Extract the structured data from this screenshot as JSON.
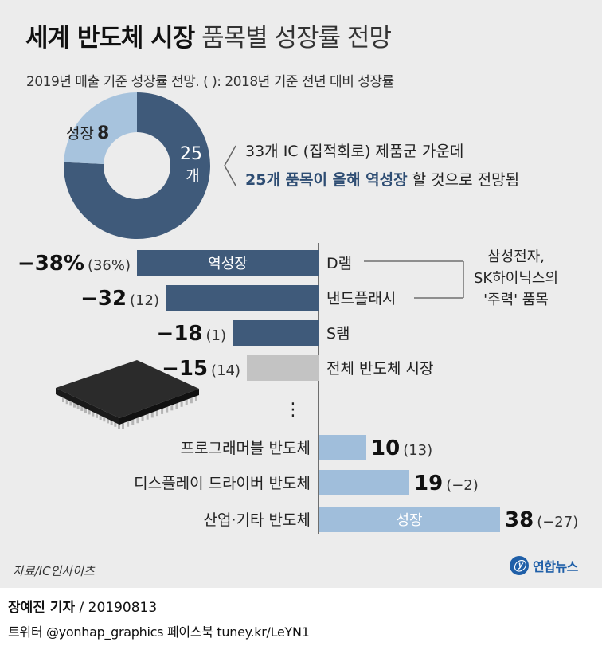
{
  "header": {
    "title_bold": "세계 반도체 시장",
    "title_light": "품목별 성장률 전망",
    "subtitle": "2019년 매출 기준 성장률 전망. ( ): 2018년 기준 전년 대비 성장률"
  },
  "donut": {
    "growth_label": "성장",
    "growth_count": "8",
    "decline_count": "25",
    "decline_unit": "개",
    "note_line1": "33개 IC (집적회로) 제품군 가운데",
    "note_bold": "25개 품목이 올해 역성장",
    "note_rest": " 할 것으로 전망됨",
    "colors": {
      "decline": "#3f5a7a",
      "growth": "#a7c3dd"
    }
  },
  "chart_data": {
    "type": "bar",
    "orientation": "horizontal",
    "categories": [
      "D램",
      "낸드플래시",
      "S램",
      "전체 반도체 시장",
      "프로그래머블 반도체",
      "디스플레이 드라이버 반도체",
      "산업·기타 반도체"
    ],
    "values": [
      -38,
      -32,
      -18,
      -15,
      10,
      19,
      38
    ],
    "value_labels": [
      "−38%",
      "−32",
      "−18",
      "−15",
      "10",
      "19",
      "38"
    ],
    "prev_labels": [
      "(36%)",
      "(12)",
      "(1)",
      "(14)",
      "(13)",
      "(−2)",
      "(−27)"
    ],
    "bar_texts": [
      "역성장",
      "",
      "",
      "",
      "",
      "",
      "성장"
    ],
    "ellipsis": "⋮",
    "colors": {
      "negative": "#3f5a7a",
      "total": "#c3c3c3",
      "positive": "#a0bedb"
    }
  },
  "annotation": {
    "lines": [
      "삼성전자,",
      "SK하이닉스의",
      "'주력' 품목"
    ]
  },
  "footer": {
    "source": "자료/IC인사이츠",
    "logo_mark": "ⓨ",
    "logo_text": "연합뉴스",
    "byline_name": "장예진 기자",
    "byline_date": " / 20190813",
    "social": "트위터 @yonhap_graphics  페이스북 tuney.kr/LeYN1"
  }
}
